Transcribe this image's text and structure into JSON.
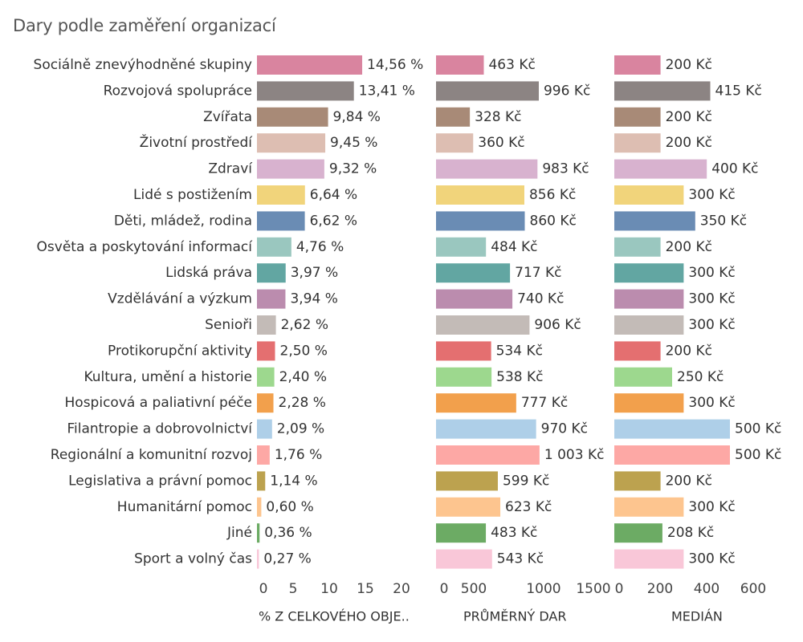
{
  "chart_data": {
    "type": "bar",
    "orientation": "horizontal",
    "title": "Dary podle zaměření organizací",
    "categories": [
      "Sociálně znevýhodněné skupiny",
      "Rozvojová spolupráce",
      "Zvířata",
      "Životní prostředí",
      "Zdraví",
      "Lidé s postižením",
      "Děti, mládež, rodina",
      "Osvěta a poskytování informací",
      "Lidská práva",
      "Vzdělávání a výzkum",
      "Senioři",
      "Protikorupční aktivity",
      "Kultura, umění a historie",
      "Hospicová a paliativní péče",
      "Filantropie a dobrovolnictví",
      "Regionální a komunitní rozvoj",
      "Legislativa a právní pomoc",
      "Humanitární pomoc",
      "Jiné",
      "Sport a volný čas"
    ],
    "colors": [
      "#d9849f",
      "#8c8483",
      "#a88a77",
      "#ddbeb2",
      "#d8b2cf",
      "#f1d47b",
      "#6a8cb4",
      "#9ac7bf",
      "#62a6a2",
      "#bb8cae",
      "#c3bbb7",
      "#e46f70",
      "#9dd88e",
      "#f2a04c",
      "#aecfe8",
      "#fda8a5",
      "#bca24f",
      "#fdc58f",
      "#6cab64",
      "#f9c7d8"
    ],
    "series": [
      {
        "name": "% Z CELKOVÉHO OBJE..",
        "values": [
          14.56,
          13.41,
          9.84,
          9.45,
          9.32,
          6.64,
          6.62,
          4.76,
          3.97,
          3.94,
          2.62,
          2.5,
          2.4,
          2.28,
          2.09,
          1.76,
          1.14,
          0.6,
          0.36,
          0.27
        ],
        "labels": [
          "14,56 %",
          "13,41 %",
          "9,84 %",
          "9,45 %",
          "9,32 %",
          "6,64 %",
          "6,62 %",
          "4,76 %",
          "3,97 %",
          "3,94 %",
          "2,62 %",
          "2,50 %",
          "2,40 %",
          "2,28 %",
          "2,09 %",
          "1,76 %",
          "1,14 %",
          "0,60 %",
          "0,36 %",
          "0,27 %"
        ],
        "xlim": [
          0,
          22
        ],
        "ticks": [
          0,
          5,
          10,
          15,
          20
        ],
        "tick_labels": [
          "0",
          "5",
          "10",
          "15",
          "20"
        ]
      },
      {
        "name": "PRŮMĚRNÝ DAR",
        "values": [
          463,
          996,
          328,
          360,
          983,
          856,
          860,
          484,
          717,
          740,
          906,
          534,
          538,
          777,
          970,
          1003,
          599,
          623,
          483,
          543
        ],
        "labels": [
          "463 Kč",
          "996 Kč",
          "328 Kč",
          "360 Kč",
          "983 Kč",
          "856 Kč",
          "860 Kč",
          "484 Kč",
          "717 Kč",
          "740 Kč",
          "906 Kč",
          "534 Kč",
          "538 Kč",
          "777 Kč",
          "970 Kč",
          "1 003 Kč",
          "599 Kč",
          "623 Kč",
          "483 Kč",
          "543 Kč"
        ],
        "xlim": [
          0,
          1600
        ],
        "ticks": [
          0,
          500,
          1000,
          1500
        ],
        "tick_labels": [
          "0",
          "500",
          "1000",
          "1500"
        ]
      },
      {
        "name": "MEDIÁN",
        "values": [
          200,
          415,
          200,
          200,
          400,
          300,
          350,
          200,
          300,
          300,
          300,
          200,
          250,
          300,
          500,
          500,
          200,
          300,
          208,
          300
        ],
        "labels": [
          "200 Kč",
          "415 Kč",
          "200 Kč",
          "200 Kč",
          "400 Kč",
          "300 Kč",
          "350 Kč",
          "200 Kč",
          "300 Kč",
          "300 Kč",
          "300 Kč",
          "200 Kč",
          "250 Kč",
          "300 Kč",
          "500 Kč",
          "500 Kč",
          "200 Kč",
          "300 Kč",
          "208 Kč",
          "300 Kč"
        ],
        "xlim": [
          0,
          700
        ],
        "ticks": [
          0,
          200,
          400,
          600
        ],
        "tick_labels": [
          "0",
          "200",
          "400",
          "600"
        ]
      }
    ],
    "grid": false,
    "legend": "none"
  }
}
